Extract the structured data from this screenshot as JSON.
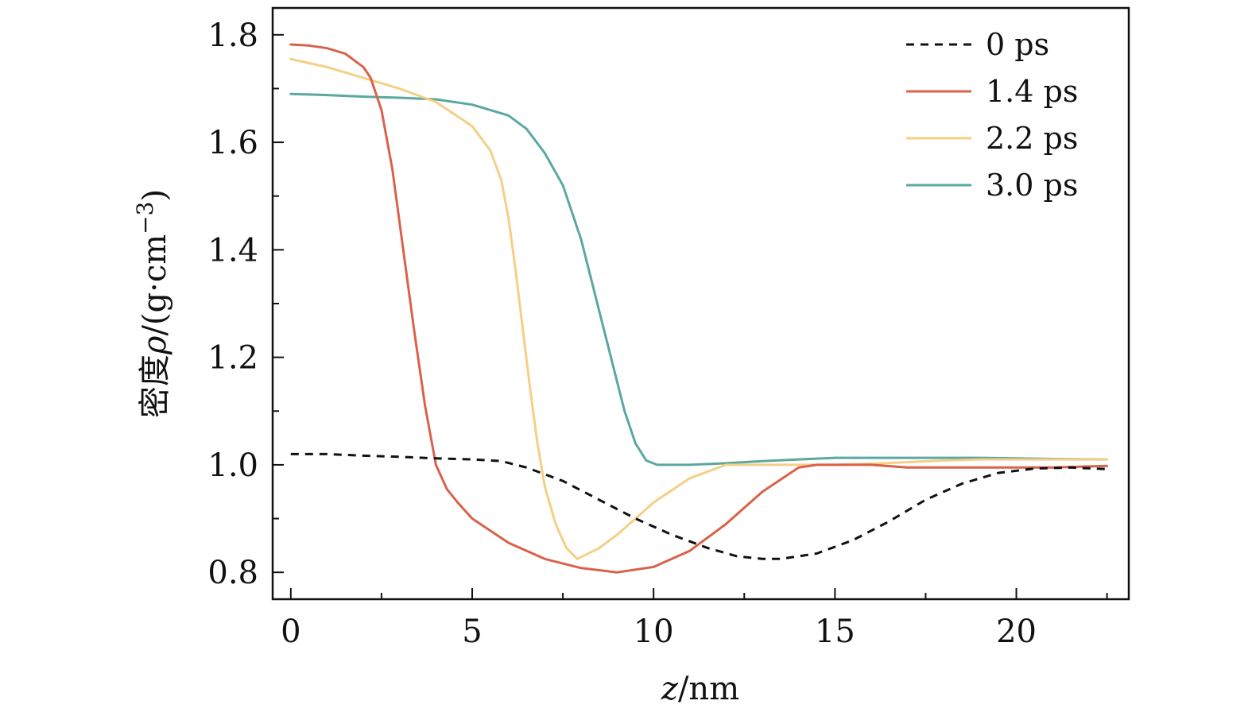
{
  "chart_data": {
    "type": "line",
    "xlabel_var": "z",
    "xlabel_unit": "/nm",
    "ylabel_text": "密度",
    "ylabel_var": "ρ",
    "ylabel_unit": "/(g·cm",
    "ylabel_exp": "−3",
    "ylabel_close": ")",
    "xlim": [
      -0.5,
      23.1
    ],
    "ylim": [
      0.75,
      1.85
    ],
    "xticks": [
      0,
      5,
      10,
      15,
      20
    ],
    "xtick_labels": [
      "0",
      "5",
      "10",
      "15",
      "20"
    ],
    "xminor": [
      2.5,
      7.5,
      12.5,
      17.5,
      22.5
    ],
    "yticks": [
      0.8,
      1.0,
      1.2,
      1.4,
      1.6,
      1.8
    ],
    "ytick_labels": [
      "0.8",
      "1.0",
      "1.2",
      "1.4",
      "1.6",
      "1.8"
    ],
    "yminor": [
      0.9,
      1.1,
      1.3,
      1.5,
      1.7
    ],
    "legend_position": "top-right",
    "grid": false,
    "series": [
      {
        "name": "0 ps",
        "color": "#111111",
        "dash": true,
        "x": [
          0,
          1,
          2,
          3,
          4,
          5,
          5.8,
          6.5,
          7.5,
          8.5,
          9.5,
          10.5,
          11.5,
          12.3,
          13,
          13.5,
          14.5,
          15.5,
          16.5,
          17.5,
          18.5,
          19.5,
          20.5,
          21.5,
          22.5
        ],
        "y": [
          1.02,
          1.02,
          1.017,
          1.015,
          1.012,
          1.01,
          1.007,
          0.995,
          0.97,
          0.935,
          0.9,
          0.87,
          0.845,
          0.83,
          0.825,
          0.825,
          0.835,
          0.86,
          0.895,
          0.935,
          0.965,
          0.985,
          0.993,
          0.995,
          0.992
        ]
      },
      {
        "name": "1.4 ps",
        "color": "#D9624A",
        "dash": false,
        "x": [
          0,
          0.5,
          1,
          1.5,
          2,
          2.2,
          2.5,
          2.8,
          3.1,
          3.4,
          3.7,
          4.0,
          4.3,
          4.6,
          5,
          6,
          7,
          8,
          9,
          10,
          11,
          12,
          13,
          14,
          14.5,
          15,
          16,
          17,
          18,
          19,
          20,
          21,
          22.5
        ],
        "y": [
          1.782,
          1.78,
          1.775,
          1.765,
          1.74,
          1.72,
          1.66,
          1.55,
          1.4,
          1.25,
          1.11,
          1.0,
          0.955,
          0.93,
          0.9,
          0.855,
          0.825,
          0.808,
          0.8,
          0.81,
          0.84,
          0.89,
          0.95,
          0.995,
          1.0,
          1.0,
          1.0,
          0.995,
          0.995,
          0.995,
          0.995,
          0.995,
          0.998
        ]
      },
      {
        "name": "2.2 ps",
        "color": "#F5CF86",
        "dash": false,
        "x": [
          0,
          1,
          2,
          3,
          4,
          5,
          5.5,
          5.8,
          6.0,
          6.2,
          6.4,
          6.6,
          6.8,
          7.0,
          7.3,
          7.6,
          7.9,
          8.5,
          9.0,
          9.5,
          10,
          11,
          12,
          13,
          14,
          15,
          16,
          17,
          18,
          19,
          20,
          21,
          22.5
        ],
        "y": [
          1.755,
          1.74,
          1.72,
          1.7,
          1.675,
          1.63,
          1.585,
          1.53,
          1.46,
          1.36,
          1.25,
          1.14,
          1.04,
          0.96,
          0.89,
          0.845,
          0.825,
          0.845,
          0.87,
          0.9,
          0.93,
          0.975,
          1.0,
          1.0,
          1.0,
          1.0,
          1.002,
          1.005,
          1.008,
          1.01,
          1.01,
          1.01,
          1.01
        ]
      },
      {
        "name": "3.0 ps",
        "color": "#5AA8A0",
        "dash": false,
        "x": [
          0,
          1,
          2,
          3,
          4,
          5,
          6,
          6.5,
          7,
          7.5,
          8,
          8.3,
          8.6,
          8.9,
          9.2,
          9.5,
          9.8,
          10.1,
          10.4,
          11,
          12,
          13,
          14,
          15,
          16,
          17,
          18,
          19,
          20,
          21,
          22.5
        ],
        "y": [
          1.69,
          1.688,
          1.685,
          1.683,
          1.68,
          1.67,
          1.65,
          1.625,
          1.58,
          1.52,
          1.42,
          1.34,
          1.26,
          1.18,
          1.1,
          1.04,
          1.008,
          1.0,
          1.0,
          1.0,
          1.003,
          1.007,
          1.01,
          1.013,
          1.013,
          1.013,
          1.013,
          1.013,
          1.012,
          1.011,
          1.01
        ]
      }
    ]
  }
}
